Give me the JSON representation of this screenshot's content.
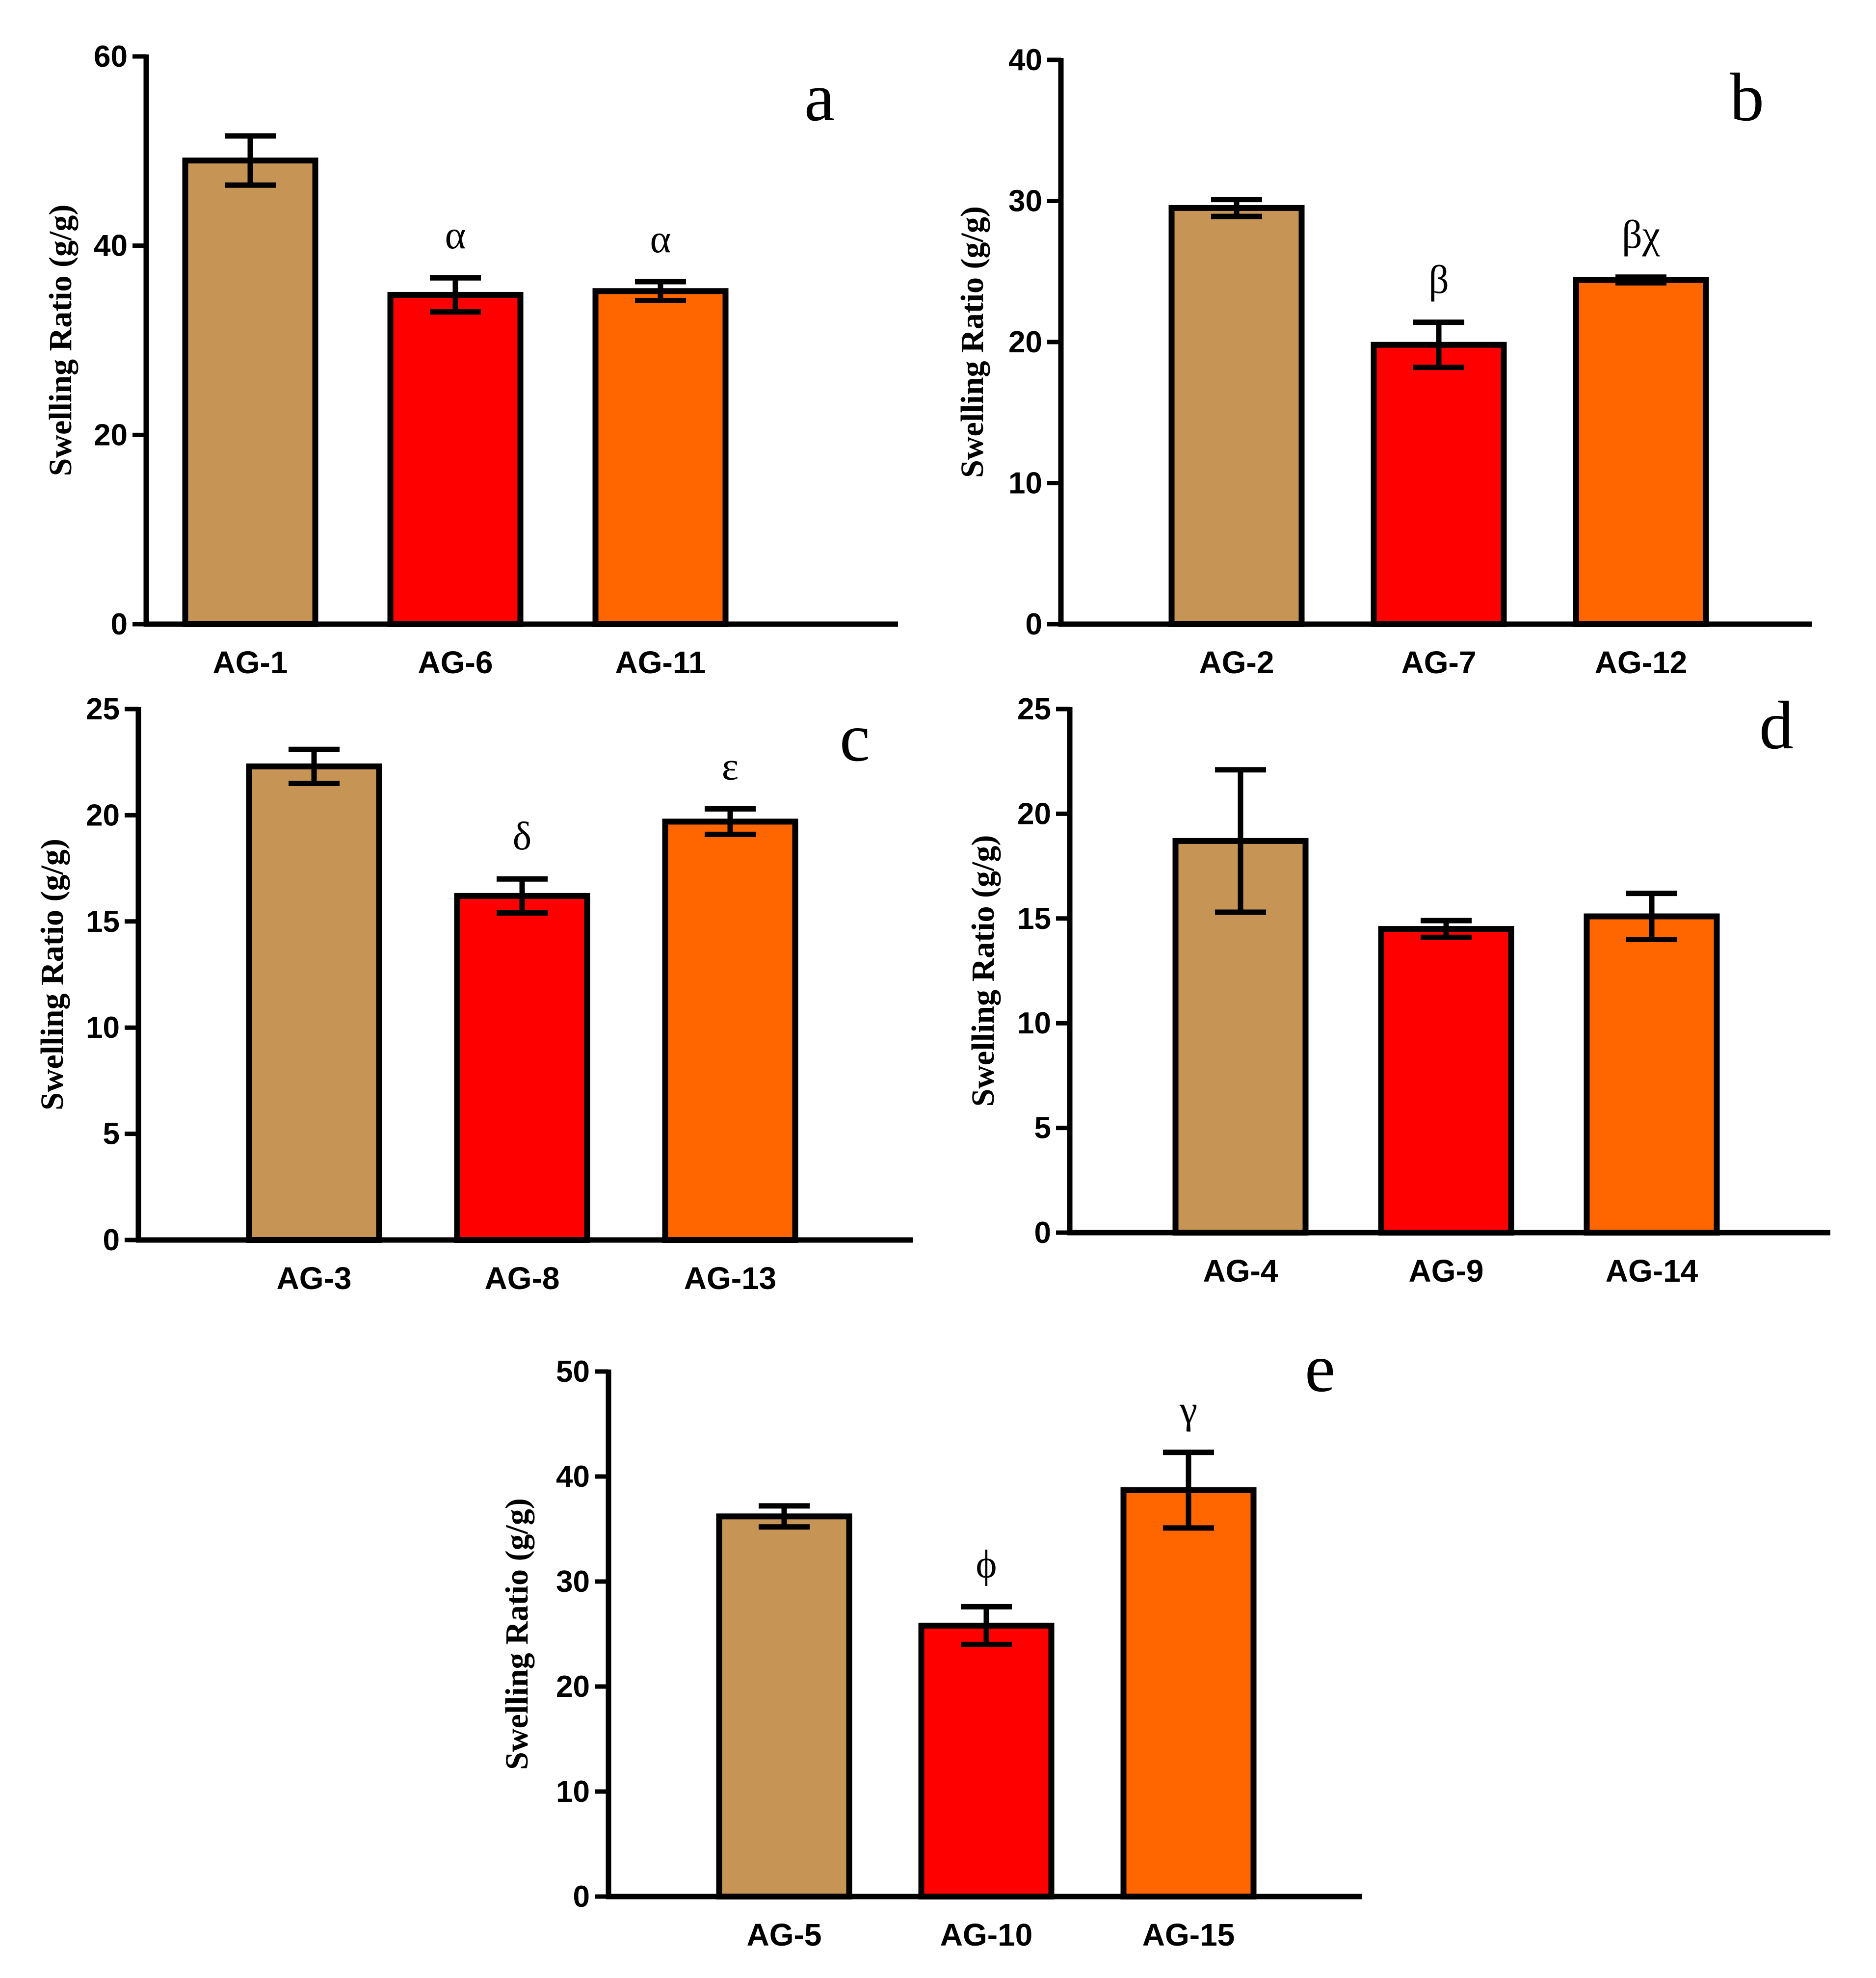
{
  "chart_data": [
    {
      "type": "bar",
      "panel": "a",
      "ylabel": "Swelling Ratio (g/g)",
      "ylim": [
        0,
        60
      ],
      "yticks": [
        0,
        20,
        40,
        60
      ],
      "categories": [
        "AG-1",
        "AG-6",
        "AG-11"
      ],
      "values": [
        49,
        34.8,
        35.2
      ],
      "errors": [
        2.6,
        1.8,
        1.0
      ],
      "annotations": [
        "",
        "α",
        "α"
      ]
    },
    {
      "type": "bar",
      "panel": "b",
      "ylabel": "Swelling Ratio (g/g)",
      "ylim": [
        0,
        40
      ],
      "yticks": [
        0,
        10,
        20,
        30,
        40
      ],
      "categories": [
        "AG-2",
        "AG-7",
        "AG-12"
      ],
      "values": [
        29.5,
        19.8,
        24.4
      ],
      "errors": [
        0.6,
        1.6,
        0.2
      ],
      "annotations": [
        "",
        "β",
        "βχ"
      ]
    },
    {
      "type": "bar",
      "panel": "c",
      "ylabel": "Swelling Ratio (g/g)",
      "ylim": [
        0,
        25
      ],
      "yticks": [
        0,
        5,
        10,
        15,
        20,
        25
      ],
      "categories": [
        "AG-3",
        "AG-8",
        "AG-13"
      ],
      "values": [
        22.3,
        16.2,
        19.7
      ],
      "errors": [
        0.8,
        0.8,
        0.6
      ],
      "annotations": [
        "",
        "δ",
        "ε"
      ]
    },
    {
      "type": "bar",
      "panel": "d",
      "ylabel": "Swelling Ratio (g/g)",
      "ylim": [
        0,
        25
      ],
      "yticks": [
        0,
        5,
        10,
        15,
        20,
        25
      ],
      "categories": [
        "AG-4",
        "AG-9",
        "AG-14"
      ],
      "values": [
        18.7,
        14.5,
        15.1
      ],
      "errors": [
        3.4,
        0.4,
        1.1
      ],
      "annotations": [
        "",
        "",
        ""
      ]
    },
    {
      "type": "bar",
      "panel": "e",
      "ylabel": "Swelling Ratio (g/g)",
      "ylim": [
        0,
        50
      ],
      "yticks": [
        0,
        10,
        20,
        30,
        40,
        50
      ],
      "categories": [
        "AG-5",
        "AG-10",
        "AG-15"
      ],
      "values": [
        36.2,
        25.8,
        38.7
      ],
      "errors": [
        1.0,
        1.8,
        3.6
      ],
      "annotations": [
        "",
        "ϕ",
        "γ"
      ]
    }
  ],
  "bar_colors": [
    "#c69555",
    "#ff0000",
    "#ff6600"
  ]
}
